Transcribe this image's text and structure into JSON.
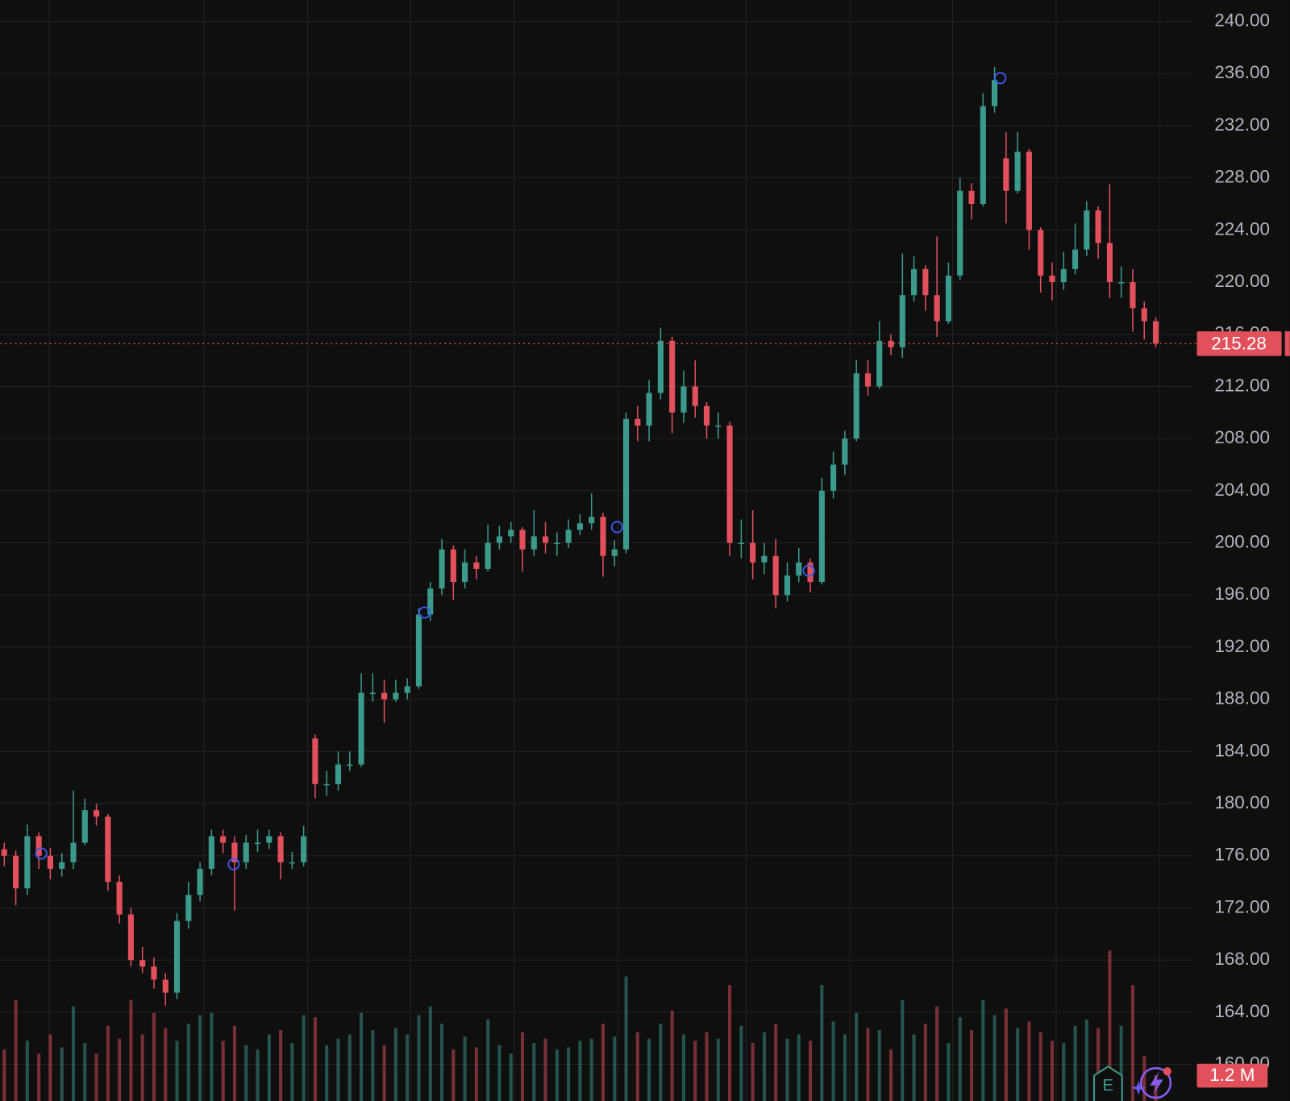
{
  "chart_data": {
    "type": "candlestick",
    "up_color": "#3b9a8c",
    "down_color": "#e2505c",
    "grid": true,
    "ylim": [
      157.19,
      241.64
    ],
    "yticks": [
      {
        "value": 160,
        "label": "160.00"
      },
      {
        "value": 164,
        "label": "164.00"
      },
      {
        "value": 168,
        "label": "168.00"
      },
      {
        "value": 172,
        "label": "172.00"
      },
      {
        "value": 176,
        "label": "176.00"
      },
      {
        "value": 180,
        "label": "180.00"
      },
      {
        "value": 184,
        "label": "184.00"
      },
      {
        "value": 188,
        "label": "188.00"
      },
      {
        "value": 192,
        "label": "192.00"
      },
      {
        "value": 196,
        "label": "196.00"
      },
      {
        "value": 200,
        "label": "200.00"
      },
      {
        "value": 204,
        "label": "204.00"
      },
      {
        "value": 208,
        "label": "208.00"
      },
      {
        "value": 212,
        "label": "212.00"
      },
      {
        "value": 216,
        "label": "216.00"
      },
      {
        "value": 220,
        "label": "220.00"
      },
      {
        "value": 224,
        "label": "224.00"
      },
      {
        "value": 228,
        "label": "228.00"
      },
      {
        "value": 232,
        "label": "232.00"
      },
      {
        "value": 236,
        "label": "236.00"
      },
      {
        "value": 240,
        "label": "240.00"
      }
    ],
    "open": [
      176.5,
      176,
      173.5,
      177.5,
      176,
      175,
      175.5,
      177,
      179.5,
      179,
      174,
      171.5,
      168,
      167.5,
      166.5,
      165.5,
      171,
      173,
      175,
      177.5,
      177,
      175.5,
      177,
      177,
      177.5,
      175.5,
      175.5,
      185,
      181.5,
      181.5,
      183,
      183,
      188.5,
      188.5,
      188,
      188.5,
      189,
      194.5,
      196.5,
      199.5,
      197,
      198.5,
      198,
      200,
      200.5,
      201,
      199.5,
      200.5,
      200,
      200,
      201,
      201.5,
      202,
      199,
      199.5,
      209.5,
      209,
      211.5,
      215.5,
      210,
      212,
      210.5,
      209,
      209,
      200,
      200,
      198.5,
      199,
      196,
      197.5,
      198.5,
      197,
      204,
      206,
      208,
      213,
      212,
      215.5,
      215,
      219,
      221,
      219,
      217,
      220.5,
      227,
      226,
      233.5,
      229.5,
      227,
      230,
      224,
      220.5,
      220,
      221,
      222.5,
      225.5,
      223,
      220,
      220,
      218,
      217
    ],
    "high": [
      177,
      176.4,
      178.4,
      177.8,
      176.6,
      176.2,
      181,
      180.4,
      180,
      179.2,
      174.5,
      172,
      169,
      168.2,
      167,
      171.6,
      174,
      175.5,
      178,
      178,
      177.5,
      177.6,
      178,
      178,
      177.8,
      176.3,
      178.3,
      185.3,
      182.5,
      184,
      184,
      190,
      190,
      189.5,
      189.5,
      189.6,
      195,
      197,
      200.3,
      199.8,
      199.5,
      199,
      201.4,
      201.3,
      201.6,
      201.2,
      202.5,
      201.6,
      200.8,
      201.8,
      202.2,
      203.8,
      202.3,
      200.2,
      210,
      210.5,
      212.5,
      216.5,
      215.8,
      213.2,
      214,
      210.8,
      210,
      209.3,
      201.8,
      202.5,
      200,
      200.3,
      198.5,
      199.6,
      198.8,
      205,
      207,
      208.6,
      214,
      214,
      217,
      216,
      222.2,
      222,
      221.3,
      223.5,
      221.5,
      228,
      227.6,
      234.5,
      236.5,
      231.5,
      231.5,
      230.2,
      224.2,
      221.5,
      222.3,
      224.5,
      226.2,
      225.8,
      227.5,
      221.2,
      221,
      218.5,
      217.3
    ],
    "low": [
      175.2,
      172.2,
      173,
      175,
      174.2,
      174.4,
      175,
      176.8,
      178.3,
      173.3,
      170.8,
      167.5,
      167,
      165.8,
      164.5,
      165,
      170.4,
      172.5,
      174.5,
      176.2,
      171.8,
      175,
      176.3,
      176.5,
      174.2,
      175,
      175.2,
      180.4,
      180.6,
      181,
      182.5,
      182.8,
      187.8,
      186.2,
      187.8,
      188,
      188.8,
      194,
      196,
      195.6,
      196.5,
      197.2,
      197.8,
      199.5,
      200,
      197.8,
      199,
      199.2,
      199,
      199.6,
      200.6,
      201,
      197.4,
      198.2,
      199.2,
      207.8,
      207.8,
      211,
      208.4,
      209.2,
      209.6,
      208,
      208,
      199,
      198.8,
      197.2,
      197.6,
      195,
      195.5,
      197,
      196.2,
      196.8,
      203.4,
      205.2,
      207.8,
      211.3,
      211.8,
      214.4,
      214.2,
      218.5,
      217.8,
      215.8,
      216.8,
      220.2,
      224.8,
      225.8,
      233,
      224.5,
      226.8,
      222.5,
      219.2,
      218.6,
      219.4,
      220.6,
      222,
      221.8,
      218.8,
      218.8,
      216.2,
      215.6,
      215
    ],
    "close": [
      176,
      173.5,
      177.5,
      176,
      175,
      175.5,
      177,
      179.5,
      179,
      174,
      171.5,
      168,
      167.5,
      166.5,
      165.5,
      171,
      173,
      175,
      177.5,
      177,
      175.5,
      177,
      177,
      177.5,
      175.5,
      175.5,
      177.5,
      181.5,
      181.5,
      183,
      183,
      188.5,
      188.5,
      188,
      188.5,
      189,
      194.5,
      196.5,
      199.5,
      197,
      198.5,
      198,
      200,
      200.5,
      201,
      199.5,
      200.5,
      200,
      200,
      201,
      201.5,
      202,
      199,
      199.5,
      209.5,
      209,
      211.5,
      215.5,
      210,
      212,
      210.5,
      209,
      209,
      200,
      200,
      198.5,
      199,
      196,
      197.5,
      198.5,
      197,
      204,
      206,
      208,
      213,
      212,
      215.5,
      215,
      219,
      221,
      219,
      217,
      220.5,
      227,
      226,
      233.5,
      235.5,
      227,
      230,
      224,
      220.5,
      220,
      221,
      222.5,
      225.5,
      223,
      220,
      220,
      218,
      217,
      215.28
    ],
    "volume_lim": [
      0,
      8
    ],
    "volume": [
      2.4,
      4.7,
      2.8,
      2.2,
      3.1,
      2.5,
      4.4,
      2.7,
      2.2,
      3.5,
      2.9,
      4.7,
      3.1,
      4.1,
      3.4,
      2.8,
      3.6,
      4,
      4.1,
      2.8,
      3.5,
      2.6,
      2.4,
      3.1,
      3.3,
      2.7,
      4,
      3.9,
      2.6,
      2.9,
      3.1,
      4.1,
      3.3,
      2.6,
      3.4,
      3.1,
      4,
      4.4,
      3.6,
      2.4,
      3,
      2.5,
      3.8,
      2.6,
      2.2,
      3.2,
      2.7,
      2.9,
      2.4,
      2.5,
      2.8,
      2.9,
      3.6,
      3,
      5.8,
      3.2,
      2.9,
      3.6,
      4.2,
      3.1,
      2.8,
      3.2,
      2.9,
      5.4,
      3.5,
      2.7,
      3.2,
      3.6,
      2.9,
      3.1,
      2.8,
      5.4,
      3.7,
      3.1,
      4.1,
      3.4,
      3.3,
      2.4,
      4.7,
      3.1,
      3.6,
      4.4,
      2.7,
      3.9,
      3.3,
      4.7,
      4,
      4.3,
      3.4,
      3.7,
      3.2,
      2.8,
      2.7,
      3.5,
      3.8,
      3.4,
      7,
      3.5,
      5.4,
      2.1,
      1.2
    ],
    "volume_last_label": "1.2 M",
    "earnings_badge": "E"
  }
}
